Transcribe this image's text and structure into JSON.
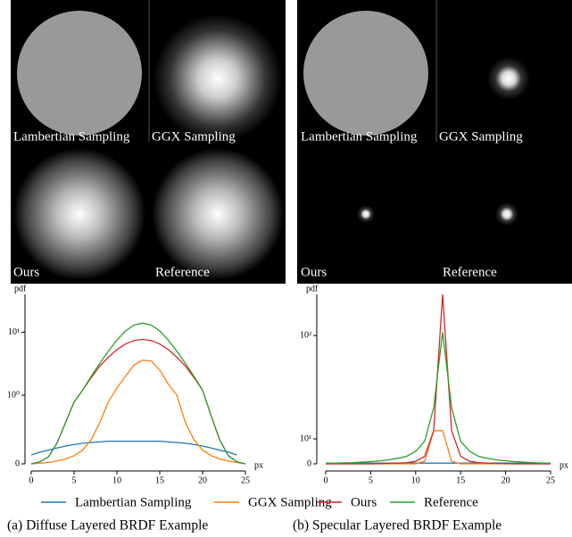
{
  "panels": [
    {
      "image_labels": [
        "Lambertian Sampling",
        "GGX Sampling",
        "Ours",
        "Reference"
      ]
    },
    {
      "image_labels": [
        "Lambertian Sampling",
        "GGX Sampling",
        "Ours",
        "Reference"
      ]
    }
  ],
  "chart_data": [
    {
      "type": "line",
      "caption": "(a) Diffuse Layered BRDF Example",
      "ylabel": "pdf",
      "xlabel": "px",
      "yscale": "symlog",
      "linthresh": 1,
      "x": [
        0,
        1,
        2,
        3,
        4,
        5,
        6,
        7,
        8,
        9,
        10,
        11,
        12,
        13,
        14,
        15,
        16,
        17,
        18,
        19,
        20,
        21,
        22,
        23,
        24,
        25
      ],
      "xlim": [
        0,
        25
      ],
      "xticks": [
        0,
        5,
        10,
        15,
        20,
        25
      ],
      "ylim": [
        0,
        40
      ],
      "yticks": [
        0,
        {
          "value": 1,
          "label": "10⁰"
        },
        {
          "value": 10,
          "label": "10¹"
        }
      ],
      "series": [
        {
          "name": "Lambertian Sampling",
          "color": "#1f77b4",
          "values": [
            0.13,
            0.17,
            0.2,
            0.23,
            0.26,
            0.28,
            0.3,
            0.31,
            0.32,
            0.33,
            0.33,
            0.33,
            0.33,
            0.33,
            0.33,
            0.33,
            0.32,
            0.31,
            0.3,
            0.28,
            0.26,
            0.23,
            0.2,
            0.17,
            0.13,
            null
          ]
        },
        {
          "name": "GGX Sampling",
          "color": "#ff7f0e",
          "values": [
            0,
            0.01,
            0.02,
            0.04,
            0.07,
            0.12,
            0.2,
            0.35,
            0.6,
            0.9,
            1.3,
            2.0,
            3.0,
            3.6,
            3.5,
            2.5,
            1.5,
            1.0,
            0.6,
            0.35,
            0.2,
            0.12,
            0.07,
            0.04,
            0.02,
            0
          ]
        },
        {
          "name": "Ours",
          "color": "#d62728",
          "values": [
            0,
            0.03,
            0.1,
            0.3,
            0.6,
            0.9,
            1.2,
            1.9,
            2.9,
            4,
            5.3,
            6.5,
            7.4,
            7.7,
            7.4,
            6.5,
            5.3,
            4,
            2.9,
            1.9,
            1.2,
            0.7,
            0.35,
            0.12,
            0.03,
            0
          ]
        },
        {
          "name": "Reference",
          "color": "#2ca02c",
          "values": [
            0,
            0.03,
            0.1,
            0.3,
            0.6,
            0.9,
            1.2,
            2.0,
            3.2,
            5,
            7.5,
            10.5,
            13,
            14,
            13,
            10.5,
            7.5,
            5,
            3.2,
            2,
            1.2,
            0.7,
            0.35,
            0.12,
            0.03,
            0
          ]
        }
      ]
    },
    {
      "type": "line",
      "caption": "(b) Specular Layered BRDF Example",
      "ylabel": "pdf",
      "xlabel": "px",
      "yscale": "symlog",
      "linthresh": 10,
      "x": [
        0,
        1,
        2,
        3,
        4,
        5,
        6,
        7,
        8,
        9,
        10,
        11,
        12,
        13,
        14,
        15,
        16,
        17,
        18,
        19,
        20,
        21,
        22,
        23,
        24,
        25
      ],
      "xlim": [
        0,
        25
      ],
      "xticks": [
        0,
        5,
        10,
        15,
        20,
        25
      ],
      "ylim": [
        0,
        250
      ],
      "yticks": [
        0,
        {
          "value": 10,
          "label": "10¹"
        },
        {
          "value": 100,
          "label": "10²"
        }
      ],
      "series": [
        {
          "name": "Lambertian Sampling",
          "color": "#1f77b4",
          "values": [
            0.3,
            0.3,
            0.3,
            0.3,
            0.3,
            0.3,
            0.3,
            0.3,
            0.3,
            0.3,
            0.3,
            0.3,
            0.3,
            0.3,
            0.3,
            0.3,
            0.3,
            0.3,
            0.3,
            0.3,
            0.3,
            0.3,
            0.3,
            0.3,
            0.3,
            0.3
          ]
        },
        {
          "name": "GGX Sampling",
          "color": "#ff7f0e",
          "values": [
            0,
            0,
            0,
            0,
            0,
            0,
            0,
            0,
            0,
            0,
            0,
            1,
            12,
            12,
            1,
            0,
            0,
            0,
            0,
            0,
            0,
            0,
            0,
            0,
            0,
            0
          ]
        },
        {
          "name": "Ours",
          "color": "#d62728",
          "values": [
            0,
            0,
            0,
            0,
            0,
            0,
            0.1,
            0.2,
            0.3,
            0.5,
            1,
            3,
            12,
            250,
            12,
            3,
            1,
            0.5,
            0.3,
            0.2,
            0.1,
            0,
            0,
            0,
            0,
            0
          ]
        },
        {
          "name": "Reference",
          "color": "#2ca02c",
          "values": [
            0.2,
            0.3,
            0.4,
            0.5,
            0.7,
            0.9,
            1.2,
            1.6,
            2.2,
            3,
            5,
            9,
            20,
            108,
            20,
            9,
            5,
            3,
            2.2,
            1.6,
            1.2,
            0.9,
            0.7,
            0.5,
            0.3,
            0.2
          ]
        }
      ]
    }
  ]
}
